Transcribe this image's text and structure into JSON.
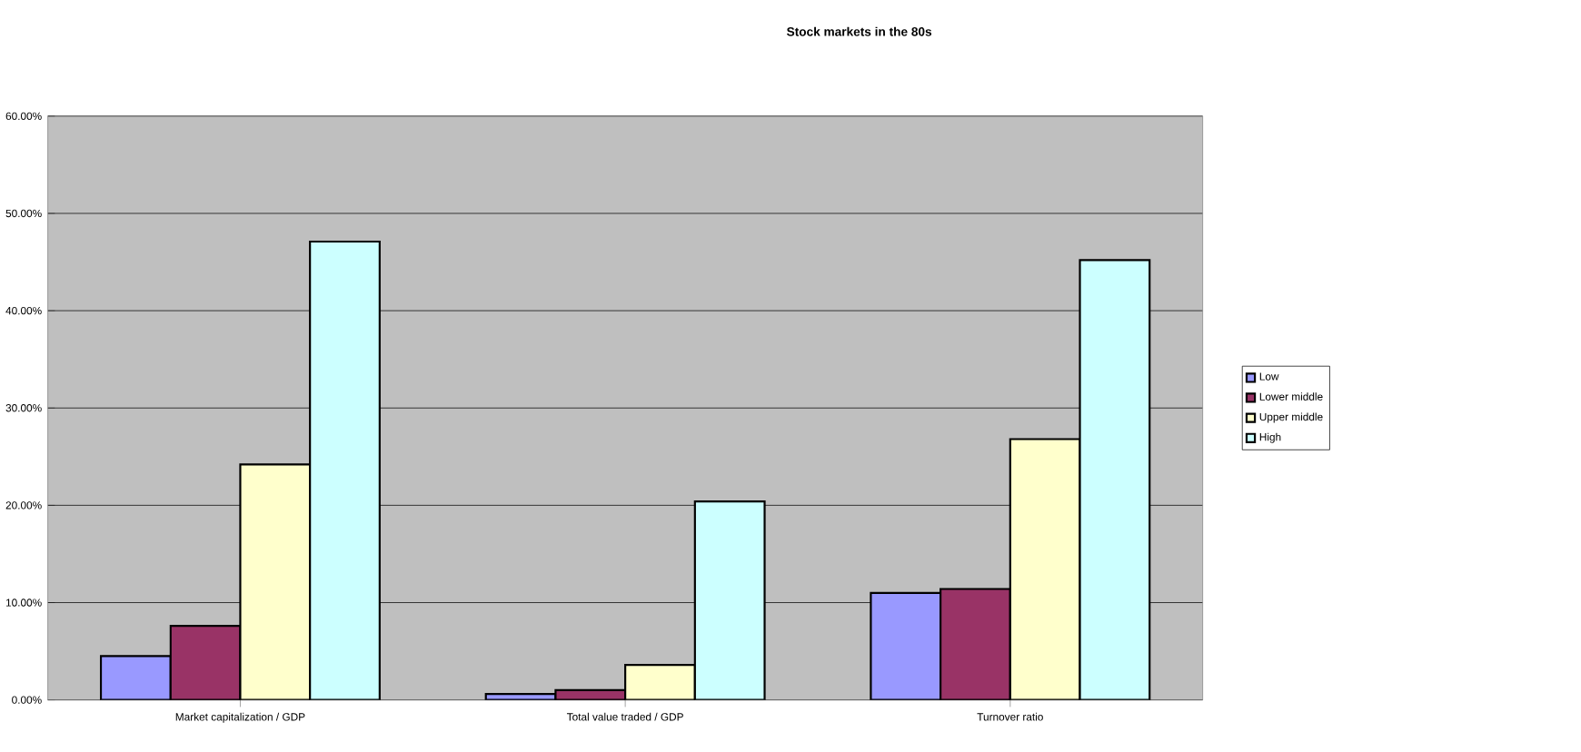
{
  "chart_data": {
    "type": "bar",
    "title": "Stock markets in the 80s",
    "categories": [
      "Market capitalization / GDP",
      "Total value traded / GDP",
      "Turnover ratio"
    ],
    "series": [
      {
        "name": "Low",
        "color": "#9999ff",
        "values": [
          4.5,
          0.6,
          11.0
        ]
      },
      {
        "name": "Lower middle",
        "color": "#993366",
        "values": [
          7.6,
          1.0,
          11.4
        ]
      },
      {
        "name": "Upper middle",
        "color": "#ffffcc",
        "values": [
          24.2,
          3.6,
          26.8
        ]
      },
      {
        "name": "High",
        "color": "#ccffff",
        "values": [
          47.1,
          20.4,
          45.2
        ]
      }
    ],
    "ylim": [
      0,
      60
    ],
    "yticks": [
      {
        "value": 0,
        "label": "0.00%"
      },
      {
        "value": 10,
        "label": "10.00%"
      },
      {
        "value": 20,
        "label": "20.00%"
      },
      {
        "value": 30,
        "label": "30.00%"
      },
      {
        "value": 40,
        "label": "40.00%"
      },
      {
        "value": 50,
        "label": "50.00%"
      },
      {
        "value": 60,
        "label": "60.00%"
      }
    ],
    "grid": "y",
    "legend": "right"
  }
}
